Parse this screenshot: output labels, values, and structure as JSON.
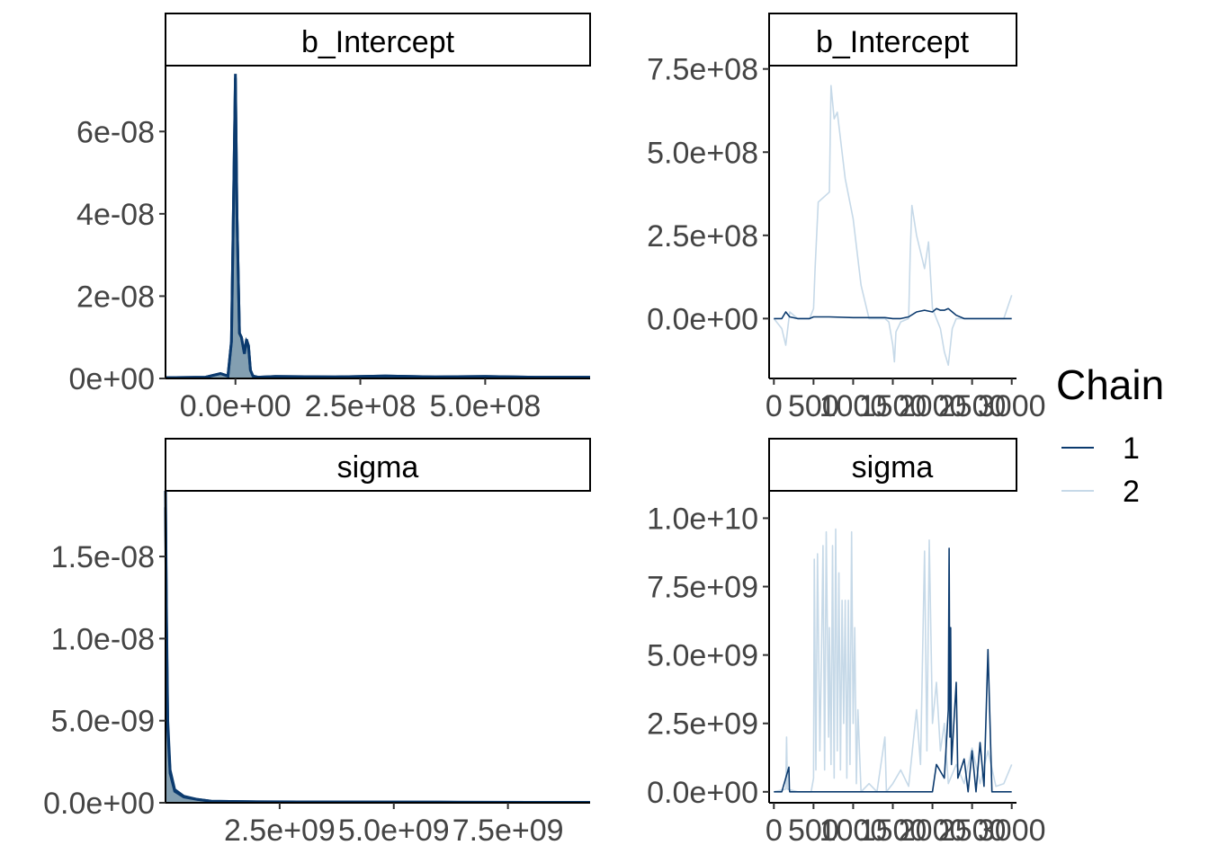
{
  "legend": {
    "title": "Chain",
    "items": [
      {
        "label": "1",
        "color": "#0b3a6e"
      },
      {
        "label": "2",
        "color": "#c6d9e8"
      }
    ]
  },
  "chart_data": [
    {
      "type": "area",
      "strip": "b_Intercept",
      "x_ticks": [
        "0.0e+00",
        "2.5e+08",
        "5.0e+08"
      ],
      "y_ticks": [
        "0e+00",
        "2e-08",
        "4e-08",
        "6e-08"
      ],
      "x_tick_values": [
        0,
        250000000,
        500000000
      ],
      "y_tick_values": [
        0,
        2e-08,
        4e-08,
        6e-08
      ],
      "xlim": [
        -140000000,
        710000000
      ],
      "ylim": [
        0,
        7.6e-08
      ],
      "series": [
        {
          "name": "1",
          "x": [
            -140000000,
            -60000000,
            -30000000,
            -15000000,
            -8000000,
            -3000000,
            0,
            3000000,
            8000000,
            12000000,
            18000000,
            22000000,
            26000000,
            30000000,
            35000000,
            45000000,
            80000000,
            200000000,
            300000000,
            400000000,
            500000000,
            600000000,
            710000000
          ],
          "y": [
            2e-10,
            3e-10,
            1.2e-09,
            6e-10,
            9e-09,
            5e-08,
            7.4e-08,
            4e-08,
            1.1e-08,
            1e-08,
            6e-09,
            9.5e-09,
            8e-09,
            2e-09,
            6e-10,
            3e-10,
            5e-10,
            4e-10,
            6e-10,
            4e-10,
            5e-10,
            3e-10,
            3e-10
          ]
        },
        {
          "name": "2",
          "x": [
            -140000000,
            -60000000,
            -30000000,
            -15000000,
            -8000000,
            -3000000,
            0,
            3000000,
            8000000,
            12000000,
            18000000,
            22000000,
            26000000,
            30000000,
            35000000,
            45000000,
            80000000,
            200000000,
            300000000,
            400000000,
            500000000,
            600000000,
            710000000
          ],
          "y": [
            2e-10,
            3e-10,
            1.2e-09,
            6e-10,
            9e-09,
            5e-08,
            7.3e-08,
            4e-08,
            1.1e-08,
            1e-08,
            6e-09,
            9e-09,
            8e-09,
            2e-09,
            6e-10,
            3e-10,
            5e-10,
            4e-10,
            6e-10,
            4e-10,
            5e-10,
            3e-10,
            3e-10
          ]
        }
      ]
    },
    {
      "type": "line",
      "strip": "b_Intercept",
      "x_ticks": [
        "0",
        "500",
        "1000",
        "1500",
        "2000",
        "2500",
        "3000"
      ],
      "y_ticks": [
        "0.0e+00",
        "2.5e+08",
        "5.0e+08",
        "7.5e+08"
      ],
      "x_tick_values": [
        0,
        500,
        1000,
        1500,
        2000,
        2500,
        3000
      ],
      "y_tick_values": [
        0,
        250000000,
        500000000,
        750000000
      ],
      "xlim": [
        -60,
        3060
      ],
      "ylim": [
        -180000000,
        760000000
      ],
      "series": [
        {
          "name": "2",
          "x": [
            0,
            100,
            150,
            200,
            300,
            450,
            500,
            520,
            560,
            700,
            720,
            760,
            800,
            900,
            1000,
            1100,
            1200,
            1300,
            1400,
            1450,
            1500,
            1520,
            1540,
            1600,
            1700,
            1720,
            1740,
            1800,
            1900,
            1950,
            2000,
            2050,
            2100,
            2150,
            2200,
            2250,
            2300,
            2400,
            2500,
            2700,
            2800,
            2900,
            3000
          ],
          "y": [
            0,
            -30000000,
            -80000000,
            20000000,
            0,
            0,
            30000000,
            150000000,
            350000000,
            380000000,
            700000000,
            600000000,
            620000000,
            420000000,
            300000000,
            100000000,
            0,
            0,
            0,
            -10000000,
            -80000000,
            -130000000,
            -40000000,
            -10000000,
            0,
            200000000,
            340000000,
            250000000,
            150000000,
            230000000,
            30000000,
            0,
            -30000000,
            -100000000,
            -140000000,
            -30000000,
            0,
            0,
            0,
            0,
            0,
            0,
            70000000
          ]
        },
        {
          "name": "1",
          "x": [
            0,
            100,
            150,
            200,
            300,
            450,
            500,
            700,
            1000,
            1200,
            1300,
            1400,
            1500,
            1600,
            1700,
            1800,
            1900,
            2000,
            2050,
            2100,
            2150,
            2200,
            2250,
            2300,
            2400,
            2500,
            2600,
            2700,
            2800,
            2900,
            3000
          ],
          "y": [
            0,
            0,
            20000000,
            5000000,
            0,
            0,
            5000000,
            5000000,
            3000000,
            3000000,
            3000000,
            3000000,
            0,
            0,
            5000000,
            20000000,
            25000000,
            20000000,
            30000000,
            25000000,
            25000000,
            30000000,
            20000000,
            10000000,
            0,
            0,
            0,
            0,
            0,
            0,
            0
          ]
        }
      ]
    },
    {
      "type": "area",
      "strip": "sigma",
      "x_ticks": [
        "2.5e+09",
        "5.0e+09",
        "7.5e+09"
      ],
      "y_ticks": [
        "0.0e+00",
        "5.0e-09",
        "1.0e-08",
        "1.5e-08"
      ],
      "x_tick_values": [
        2500000000,
        5000000000,
        7500000000
      ],
      "y_tick_values": [
        0,
        5e-09,
        1e-08,
        1.5e-08
      ],
      "xlim": [
        0,
        9300000000
      ],
      "ylim": [
        0,
        1.9e-08
      ],
      "series": [
        {
          "name": "1",
          "x": [
            0,
            20000000,
            50000000,
            100000000,
            200000000,
            400000000,
            700000000,
            1000000000,
            2000000000,
            4000000000,
            6000000000,
            8000000000,
            9300000000
          ],
          "y": [
            1.9e-08,
            1.2e-08,
            5e-09,
            2e-09,
            8e-10,
            4e-10,
            2e-10,
            1e-10,
            6e-11,
            5e-11,
            4e-11,
            3e-11,
            3e-11
          ]
        },
        {
          "name": "2",
          "x": [
            0,
            20000000,
            50000000,
            100000000,
            200000000,
            400000000,
            700000000,
            1000000000,
            2000000000,
            4000000000,
            6000000000,
            8000000000,
            9300000000
          ],
          "y": [
            1.8e-08,
            1.1e-08,
            4.5e-09,
            1.8e-09,
            7e-10,
            3.5e-10,
            2e-10,
            1e-10,
            6e-11,
            5e-11,
            4e-11,
            3e-11,
            3e-11
          ]
        }
      ]
    },
    {
      "type": "line",
      "strip": "sigma",
      "x_ticks": [
        "0",
        "500",
        "1000",
        "1500",
        "2000",
        "2500",
        "3000"
      ],
      "y_ticks": [
        "0.0e+00",
        "2.5e+09",
        "5.0e+09",
        "7.5e+09",
        "1.0e+10"
      ],
      "x_tick_values": [
        0,
        500,
        1000,
        1500,
        2000,
        2500,
        3000
      ],
      "y_tick_values": [
        0,
        2500000000,
        5000000000,
        7500000000,
        10000000000
      ],
      "xlim": [
        -60,
        3060
      ],
      "ylim": [
        -400000000,
        11000000000
      ],
      "series": [
        {
          "name": "2",
          "x": [
            0,
            150,
            160,
            170,
            300,
            470,
            500,
            510,
            530,
            550,
            580,
            600,
            620,
            640,
            660,
            690,
            700,
            720,
            740,
            760,
            780,
            800,
            820,
            840,
            860,
            880,
            900,
            920,
            940,
            960,
            980,
            1000,
            1020,
            1040,
            1060,
            1100,
            1200,
            1300,
            1400,
            1420,
            1500,
            1600,
            1700,
            1800,
            1850,
            1900,
            1930,
            1960,
            2000,
            2050,
            2100,
            2150,
            2200,
            2300,
            2400,
            2500,
            2600,
            2700,
            2800,
            2900,
            3000
          ],
          "y": [
            0,
            100000000,
            2000000000,
            100000000,
            0,
            0,
            500000000,
            8500000000,
            800000000,
            8700000000,
            1500000000,
            5000000000,
            9000000000,
            800000000,
            9500000000,
            2000000000,
            6000000000,
            1000000000,
            9000000000,
            500000000,
            9600000000,
            1500000000,
            8000000000,
            800000000,
            7000000000,
            2500000000,
            7000000000,
            500000000,
            7000000000,
            1000000000,
            9500000000,
            2500000000,
            6000000000,
            300000000,
            3000000000,
            0,
            300000000,
            0,
            2000000000,
            0,
            300000000,
            800000000,
            200000000,
            3000000000,
            1000000000,
            8800000000,
            1500000000,
            9200000000,
            2500000000,
            4000000000,
            1500000000,
            2500000000,
            300000000,
            1000000000,
            300000000,
            1600000000,
            300000000,
            1500000000,
            200000000,
            300000000,
            1000000000
          ]
        },
        {
          "name": "1",
          "x": [
            0,
            100,
            190,
            195,
            200,
            300,
            500,
            1000,
            1500,
            2000,
            2050,
            2150,
            2200,
            2210,
            2220,
            2230,
            2240,
            2300,
            2320,
            2400,
            2450,
            2500,
            2550,
            2600,
            2650,
            2700,
            2750,
            2800,
            3000
          ],
          "y": [
            0,
            0,
            900000000,
            100000000,
            0,
            0,
            0,
            0,
            0,
            0,
            1000000000,
            500000000,
            3000000000,
            8900000000,
            2000000000,
            6000000000,
            1000000000,
            4000000000,
            500000000,
            1200000000,
            0,
            1500000000,
            0,
            1800000000,
            200000000,
            5200000000,
            0,
            0,
            0
          ]
        }
      ]
    }
  ]
}
